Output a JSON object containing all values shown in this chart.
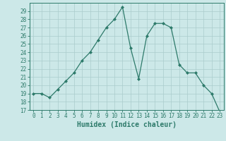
{
  "x": [
    0,
    1,
    2,
    3,
    4,
    5,
    6,
    7,
    8,
    9,
    10,
    11,
    12,
    13,
    14,
    15,
    16,
    17,
    18,
    19,
    20,
    21,
    22,
    23
  ],
  "y": [
    19,
    19,
    18.5,
    19.5,
    20.5,
    21.5,
    23,
    24,
    25.5,
    27,
    28,
    29.5,
    24.5,
    20.8,
    26,
    27.5,
    27.5,
    27,
    22.5,
    21.5,
    21.5,
    20,
    19,
    16.8
  ],
  "line_color": "#2d7a6a",
  "marker": "D",
  "marker_size": 2,
  "bg_color": "#cce8e8",
  "grid_color": "#aacccc",
  "xlabel": "Humidex (Indice chaleur)",
  "ylim": [
    17,
    30
  ],
  "xlim": [
    -0.5,
    23.5
  ],
  "yticks": [
    17,
    18,
    19,
    20,
    21,
    22,
    23,
    24,
    25,
    26,
    27,
    28,
    29
  ],
  "xticks": [
    0,
    1,
    2,
    3,
    4,
    5,
    6,
    7,
    8,
    9,
    10,
    11,
    12,
    13,
    14,
    15,
    16,
    17,
    18,
    19,
    20,
    21,
    22,
    23
  ],
  "tick_fontsize": 5.5,
  "label_fontsize": 7
}
